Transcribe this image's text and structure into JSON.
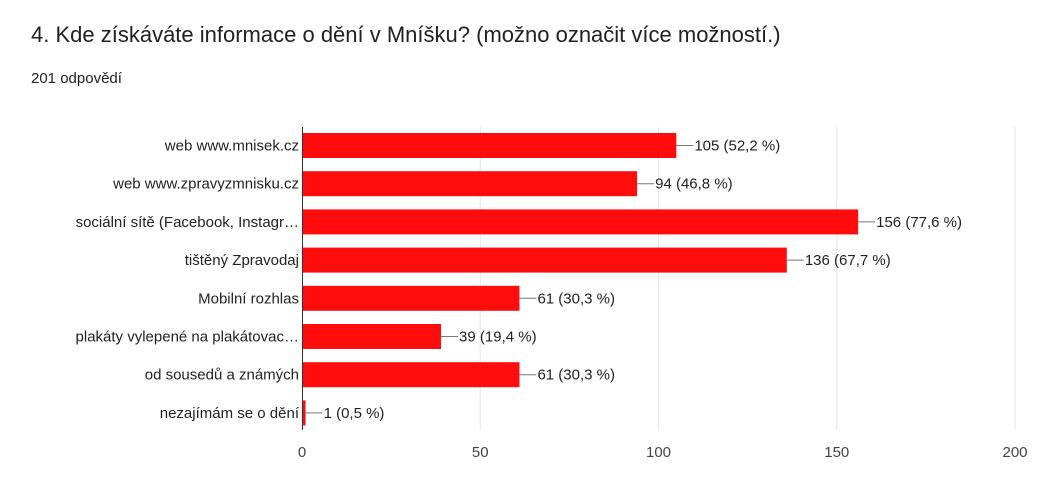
{
  "question": {
    "title": "4. Kde získáváte informace o dění v Mníšku? (možno označit více možností.)",
    "responses": "201 odpovědí"
  },
  "colors": {
    "bar": "#ff0d0d",
    "grid": "#e6e6e6",
    "axis": "#333333",
    "text": "#222222",
    "tick": "#444444"
  },
  "chart_data": {
    "type": "bar",
    "orientation": "horizontal",
    "categories": [
      "web www.mnisek.cz",
      "web www.zpravyzmnisku.cz",
      "sociální sítě (Facebook, Instagr…",
      "tištěný Zpravodaj",
      "Mobilní rozhlas",
      "plakáty vylepené na plakátovac…",
      "od sousedů a známých",
      "nezajímám se o dění"
    ],
    "values": [
      105,
      94,
      156,
      136,
      61,
      39,
      61,
      1
    ],
    "data_labels": [
      "105 (52,2 %)",
      "94 (46,8 %)",
      "156 (77,6 %)",
      "136 (67,7 %)",
      "61 (30,3 %)",
      "39 (19,4 %)",
      "61 (30,3 %)",
      "1 (0,5 %)"
    ],
    "xlim": [
      0,
      200
    ],
    "x_ticks": [
      0,
      50,
      100,
      150,
      200
    ],
    "x_tick_labels": [
      "0",
      "50",
      "100",
      "150",
      "200"
    ],
    "grid": true
  }
}
